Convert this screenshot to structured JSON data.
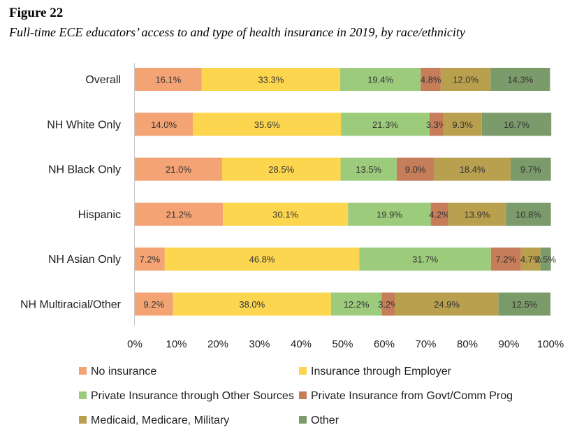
{
  "figure_label": "Figure 22",
  "title": "Full-time ECE educators’ access to and type of health insurance in 2019, by race/ethnicity",
  "chart_data": {
    "type": "bar",
    "orientation": "horizontal",
    "stacked": true,
    "xlim": [
      0,
      100
    ],
    "ticks": [
      "0%",
      "10%",
      "20%",
      "30%",
      "40%",
      "50%",
      "60%",
      "70%",
      "80%",
      "90%",
      "100%"
    ],
    "legend_position": "bottom",
    "categories": [
      "Overall",
      "NH White Only",
      "NH Black Only",
      "Hispanic",
      "NH Asian Only",
      "NH Multiracial/Other"
    ],
    "series": [
      {
        "name": "No insurance",
        "color": "#f4a374",
        "values": [
          16.1,
          14.0,
          21.0,
          21.2,
          7.2,
          9.2
        ],
        "labels": [
          "16.1%",
          "14.0%",
          "21.0%",
          "21.2%",
          "7.2%",
          "9.2%"
        ]
      },
      {
        "name": "Insurance through Employer",
        "color": "#fdd650",
        "values": [
          33.3,
          35.6,
          28.5,
          30.1,
          46.8,
          38.0
        ],
        "labels": [
          "33.3%",
          "35.6%",
          "28.5%",
          "30.1%",
          "46.8%",
          "38.0%"
        ]
      },
      {
        "name": "Private Insurance through Other Sources",
        "color": "#9dcb7c",
        "values": [
          19.4,
          21.3,
          13.5,
          19.9,
          31.7,
          12.2
        ],
        "labels": [
          "19.4%",
          "21.3%",
          "13.5%",
          "19.9%",
          "31.7%",
          "12.2%"
        ]
      },
      {
        "name": "Private Insurance from Govt/Comm Prog",
        "color": "#c57d5a",
        "values": [
          4.8,
          3.3,
          9.0,
          4.2,
          7.2,
          3.2
        ],
        "labels": [
          "4.8%",
          "3.3%",
          "9.0%",
          "4.2%",
          "7.2%",
          "3.2%"
        ]
      },
      {
        "name": "Medicaid, Medicare, Military",
        "color": "#b9a04f",
        "values": [
          12.0,
          9.3,
          18.4,
          13.9,
          4.7,
          24.9
        ],
        "labels": [
          "12.0%",
          "9.3%",
          "18.4%",
          "13.9%",
          "4.7%",
          "24.9%"
        ]
      },
      {
        "name": "Other",
        "color": "#7b9b6b",
        "values": [
          14.3,
          16.7,
          9.7,
          10.8,
          2.5,
          12.5
        ],
        "labels": [
          "14.3%",
          "16.7%",
          "9.7%",
          "10.8%",
          "2.5%",
          "12.5%"
        ]
      }
    ]
  }
}
